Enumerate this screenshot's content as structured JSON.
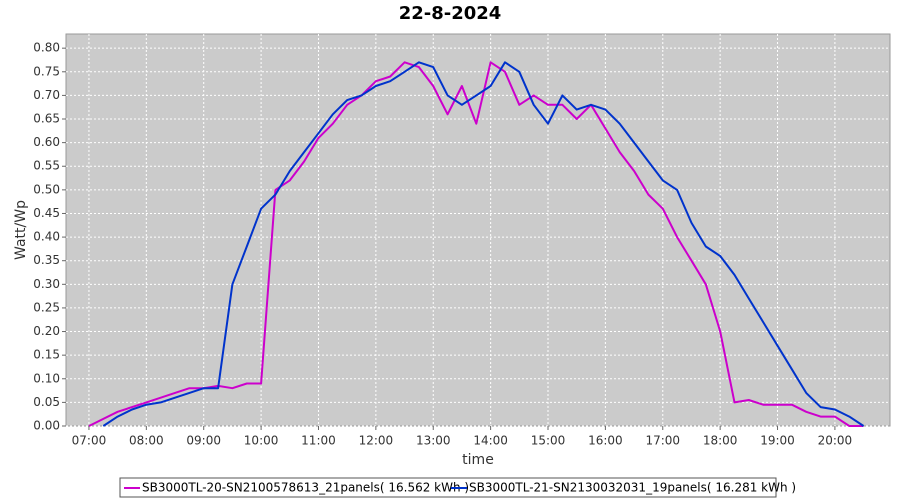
{
  "chart_data": {
    "type": "line",
    "title": "22-8-2024",
    "x_label": "time",
    "y_label": "Watt/Wp",
    "x": [
      7.0,
      7.25,
      7.5,
      7.75,
      8.0,
      8.25,
      8.5,
      8.75,
      9.0,
      9.25,
      9.5,
      9.75,
      10.0,
      10.25,
      10.5,
      10.75,
      11.0,
      11.25,
      11.5,
      11.75,
      12.0,
      12.25,
      12.5,
      12.75,
      13.0,
      13.25,
      13.5,
      13.75,
      14.0,
      14.25,
      14.5,
      14.75,
      15.0,
      15.25,
      15.5,
      15.75,
      16.0,
      16.25,
      16.5,
      16.75,
      17.0,
      17.25,
      17.5,
      17.75,
      18.0,
      18.25,
      18.5,
      18.75,
      19.0,
      19.25,
      19.5,
      19.75,
      20.0,
      20.25,
      20.5
    ],
    "series": [
      {
        "name": "SB3000TL-20-SN2100578613_21panels( 16.562 kWh )",
        "color": "#cc00cc",
        "values": [
          0.0,
          0.015,
          0.03,
          0.04,
          0.05,
          0.06,
          0.07,
          0.08,
          0.08,
          0.085,
          0.08,
          0.09,
          0.09,
          0.5,
          0.52,
          0.56,
          0.61,
          0.64,
          0.68,
          0.7,
          0.73,
          0.74,
          0.77,
          0.76,
          0.72,
          0.66,
          0.72,
          0.64,
          0.77,
          0.75,
          0.68,
          0.7,
          0.68,
          0.68,
          0.65,
          0.68,
          0.63,
          0.58,
          0.54,
          0.49,
          0.46,
          0.4,
          0.35,
          0.3,
          0.2,
          0.05,
          0.055,
          0.045,
          0.045,
          0.045,
          0.03,
          0.02,
          0.02,
          0.0,
          0.0
        ]
      },
      {
        "name": "SB3000TL-21-SN2130032031_19panels( 16.281 kWh )",
        "color": "#0033cc",
        "values": [
          null,
          0.0,
          0.02,
          0.035,
          0.045,
          0.05,
          0.06,
          0.07,
          0.08,
          0.08,
          0.3,
          0.38,
          0.46,
          0.49,
          0.54,
          0.58,
          0.62,
          0.66,
          0.69,
          0.7,
          0.72,
          0.73,
          0.75,
          0.77,
          0.76,
          0.7,
          0.68,
          0.7,
          0.72,
          0.77,
          0.75,
          0.68,
          0.64,
          0.7,
          0.67,
          0.68,
          0.67,
          0.64,
          0.6,
          0.56,
          0.52,
          0.5,
          0.43,
          0.38,
          0.36,
          0.32,
          0.27,
          0.22,
          0.17,
          0.12,
          0.07,
          0.04,
          0.035,
          0.02,
          0.0
        ]
      }
    ],
    "xlim": [
      6.6,
      20.96
    ],
    "xticks": [
      {
        "value": 7,
        "label": "07:00"
      },
      {
        "value": 8,
        "label": "08:00"
      },
      {
        "value": 9,
        "label": "09:00"
      },
      {
        "value": 10,
        "label": "10:00"
      },
      {
        "value": 11,
        "label": "11:00"
      },
      {
        "value": 12,
        "label": "12:00"
      },
      {
        "value": 13,
        "label": "13:00"
      },
      {
        "value": 14,
        "label": "14:00"
      },
      {
        "value": 15,
        "label": "15:00"
      },
      {
        "value": 16,
        "label": "16:00"
      },
      {
        "value": 17,
        "label": "17:00"
      },
      {
        "value": 18,
        "label": "18:00"
      },
      {
        "value": 19,
        "label": "19:00"
      },
      {
        "value": 20,
        "label": "20:00"
      }
    ],
    "ylim": [
      0,
      0.83
    ],
    "yticks": [
      {
        "value": 0,
        "label": "0.00"
      },
      0.05,
      {
        "value": 0.1,
        "label": "0.10"
      },
      0.15,
      {
        "value": 0.2,
        "label": "0.20"
      },
      0.25,
      {
        "value": 0.3,
        "label": "0.30"
      },
      0.35,
      {
        "value": 0.4,
        "label": "0.40"
      },
      0.45,
      {
        "value": 0.5,
        "label": "0.50"
      },
      0.55,
      {
        "value": 0.6,
        "label": "0.60"
      },
      0.65,
      {
        "value": 0.7,
        "label": "0.70"
      },
      0.75,
      {
        "value": 0.8,
        "label": "0.80"
      }
    ],
    "grid": true,
    "legend": "bottom"
  }
}
